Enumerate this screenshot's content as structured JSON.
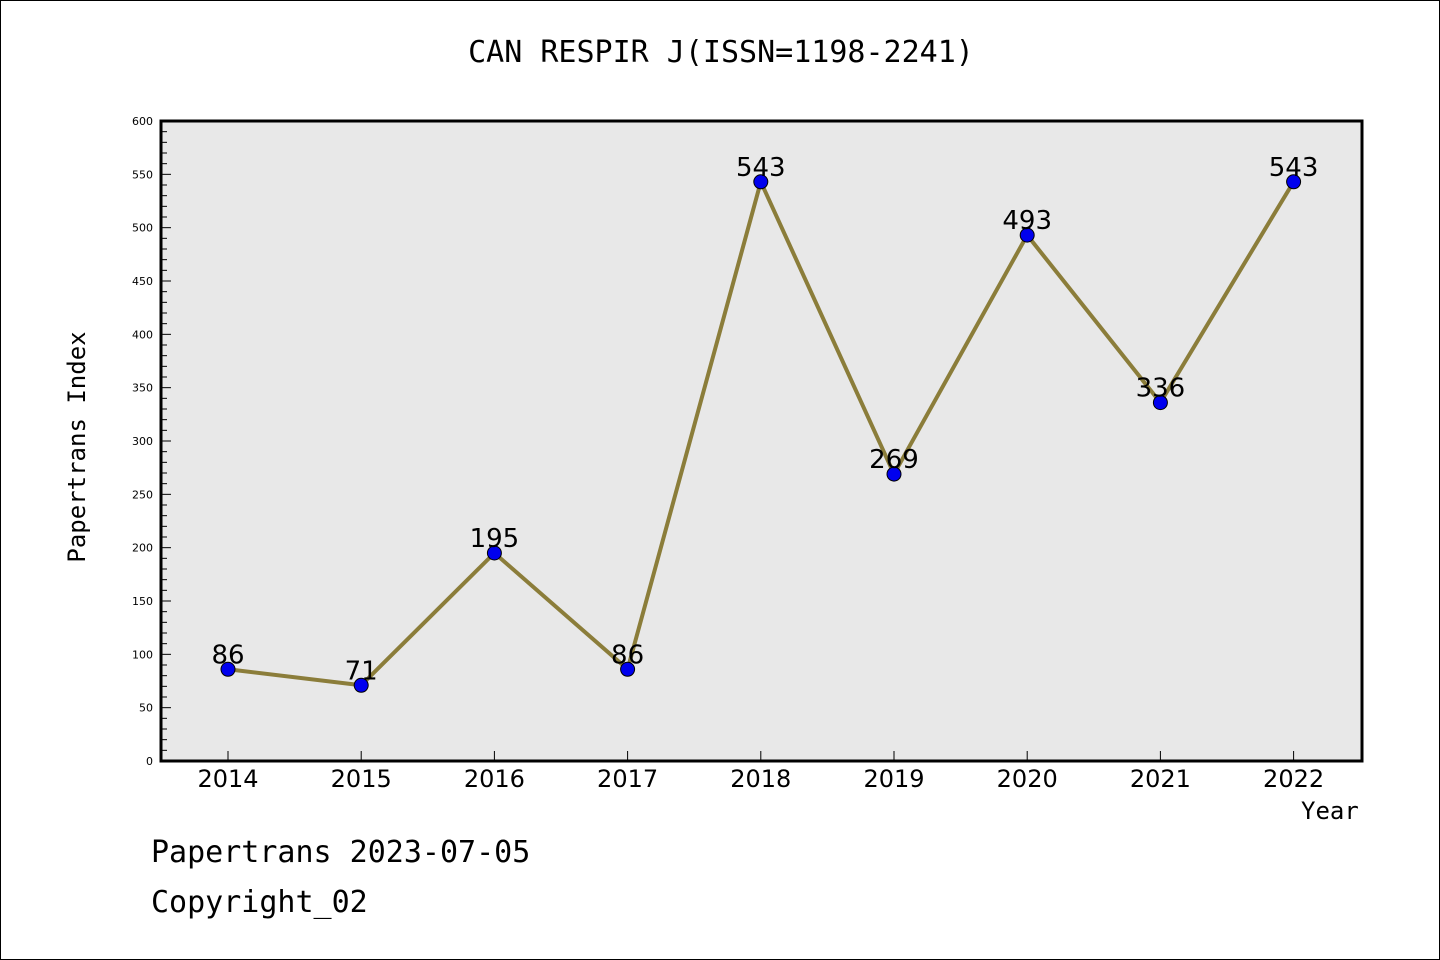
{
  "chart_data": {
    "type": "line",
    "title": "CAN RESPIR J(ISSN=1198-2241)",
    "xlabel": "Year",
    "ylabel": "Papertrans Index",
    "categories": [
      "2014",
      "2015",
      "2016",
      "2017",
      "2018",
      "2019",
      "2020",
      "2021",
      "2022"
    ],
    "series": [
      {
        "values": [
          86,
          71,
          195,
          86,
          543,
          269,
          493,
          336,
          543
        ]
      }
    ],
    "data_labels": [
      "86",
      "71",
      "195",
      "86",
      "543",
      "269",
      "493",
      "336",
      "543"
    ],
    "ylim": [
      0,
      600
    ],
    "yticks": [
      0,
      50,
      100,
      150,
      200,
      250,
      300,
      350,
      400,
      450,
      500,
      550,
      600
    ],
    "grid": false,
    "plot_background": "#e8e8e8",
    "line_color": "#8b7d3a",
    "marker_color": "#0000ee"
  },
  "footer": {
    "date_text": "Papertrans 2023-07-05",
    "copyright_text": "Copyright_02"
  }
}
